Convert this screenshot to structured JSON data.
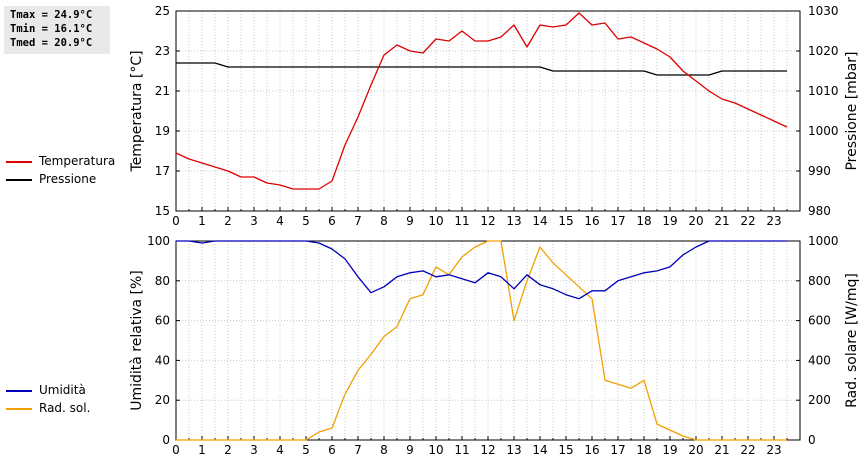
{
  "stats": {
    "tmax": "Tmax = 24.9°C",
    "tmin": "Tmin = 16.1°C",
    "tmed": "Tmed = 20.9°C"
  },
  "chart_data": [
    {
      "type": "line",
      "ylabel": "Temperatura [°C]",
      "y2label": "Pressione [mbar]",
      "ylim": [
        15,
        25
      ],
      "y2lim": [
        980,
        1030
      ],
      "yticks": [
        15,
        17,
        19,
        21,
        23,
        25
      ],
      "y2ticks": [
        980,
        990,
        1000,
        1010,
        1020,
        1030
      ],
      "xlim": [
        0,
        24
      ],
      "xticks": [
        "0",
        "1",
        "2",
        "3",
        "4",
        "5",
        "6",
        "7",
        "8",
        "9",
        "10",
        "11",
        "12",
        "13",
        "14",
        "15",
        "16",
        "17",
        "18",
        "19",
        "20",
        "21",
        "22",
        "23"
      ],
      "grid": true,
      "legend": "left",
      "series": [
        {
          "name": "Temperatura",
          "axis": "left",
          "color": "#dd0000",
          "x": [
            0,
            0.5,
            1,
            1.5,
            2,
            2.5,
            3,
            3.5,
            4,
            4.5,
            5,
            5.5,
            6,
            6.5,
            7,
            7.5,
            8,
            8.5,
            9,
            9.5,
            10,
            10.5,
            11,
            11.5,
            12,
            12.5,
            13,
            13.5,
            14,
            14.5,
            15,
            15.5,
            16,
            16.5,
            17,
            17.5,
            18,
            18.5,
            19,
            19.5,
            20,
            20.5,
            21,
            21.5,
            22,
            22.5,
            23,
            23.5
          ],
          "values": [
            17.9,
            17.6,
            17.4,
            17.2,
            17.0,
            16.7,
            16.7,
            16.4,
            16.3,
            16.1,
            16.1,
            16.1,
            16.5,
            18.3,
            19.7,
            21.3,
            22.8,
            23.3,
            23.0,
            22.9,
            23.6,
            23.5,
            24.0,
            23.5,
            23.5,
            23.7,
            24.3,
            23.2,
            24.3,
            24.2,
            24.3,
            24.9,
            24.3,
            24.4,
            23.6,
            23.7,
            23.4,
            23.1,
            22.7,
            22.0,
            21.5,
            21.0,
            20.6,
            20.4,
            20.1,
            19.8,
            19.5,
            19.2
          ]
        },
        {
          "name": "Pressione",
          "axis": "right",
          "color": "#000000",
          "x": [
            0,
            1.5,
            2,
            14,
            14.5,
            18,
            18.5,
            20.5,
            21,
            23.5
          ],
          "values": [
            1017,
            1017,
            1016,
            1016,
            1015,
            1015,
            1014,
            1014,
            1015,
            1015
          ]
        }
      ]
    },
    {
      "type": "line",
      "ylabel": "Umidità relativa [%]",
      "y2label": "Rad. solare [W/mq]",
      "ylim": [
        0,
        100
      ],
      "y2lim": [
        0,
        1000
      ],
      "yticks": [
        0,
        20,
        40,
        60,
        80,
        100
      ],
      "y2ticks": [
        0,
        200,
        400,
        600,
        800,
        1000
      ],
      "xlim": [
        0,
        24
      ],
      "xticks": [
        "0",
        "1",
        "2",
        "3",
        "4",
        "5",
        "6",
        "7",
        "8",
        "9",
        "10",
        "11",
        "12",
        "13",
        "14",
        "15",
        "16",
        "17",
        "18",
        "19",
        "20",
        "21",
        "22",
        "23"
      ],
      "grid": true,
      "legend": "left",
      "series": [
        {
          "name": "Umidità",
          "axis": "left",
          "color": "#0000bb",
          "x": [
            0,
            0.5,
            1,
            1.5,
            2,
            2.5,
            3,
            3.5,
            4,
            4.5,
            5,
            5.5,
            6,
            6.5,
            7,
            7.5,
            8,
            8.5,
            9,
            9.5,
            10,
            10.5,
            11,
            11.5,
            12,
            12.5,
            13,
            13.5,
            14,
            14.5,
            15,
            15.5,
            16,
            16.5,
            17,
            17.5,
            18,
            18.5,
            19,
            19.5,
            20,
            20.5,
            21,
            21.5,
            22,
            22.5,
            23,
            23.5
          ],
          "values": [
            100,
            100,
            99,
            100,
            100,
            100,
            100,
            100,
            100,
            100,
            100,
            99,
            96,
            91,
            82,
            74,
            77,
            82,
            84,
            85,
            82,
            83,
            81,
            79,
            84,
            82,
            76,
            83,
            78,
            76,
            73,
            71,
            75,
            75,
            80,
            82,
            84,
            85,
            87,
            93,
            97,
            100,
            100,
            100,
            100,
            100,
            100,
            100
          ]
        },
        {
          "name": "Rad. sol.",
          "axis": "right",
          "color": "#f0a000",
          "x": [
            0,
            0.5,
            1,
            1.5,
            2,
            2.5,
            3,
            3.5,
            4,
            4.5,
            5,
            5.5,
            6,
            6.5,
            7,
            7.5,
            8,
            8.5,
            9,
            9.5,
            10,
            10.5,
            11,
            11.5,
            12,
            12.5,
            13,
            13.5,
            14,
            14.5,
            15,
            15.5,
            16,
            16.5,
            17,
            17.5,
            18,
            18.5,
            19,
            19.5,
            20,
            20.5,
            21,
            21.5,
            22,
            22.5,
            23,
            23.5
          ],
          "values": [
            0,
            0,
            0,
            0,
            0,
            0,
            0,
            0,
            0,
            0,
            0,
            40,
            60,
            230,
            350,
            430,
            520,
            570,
            710,
            730,
            870,
            830,
            920,
            970,
            1000,
            1000,
            600,
            800,
            970,
            890,
            830,
            770,
            710,
            300,
            280,
            260,
            300,
            80,
            50,
            20,
            0,
            0,
            0,
            0,
            0,
            0,
            0,
            0
          ]
        }
      ]
    }
  ]
}
